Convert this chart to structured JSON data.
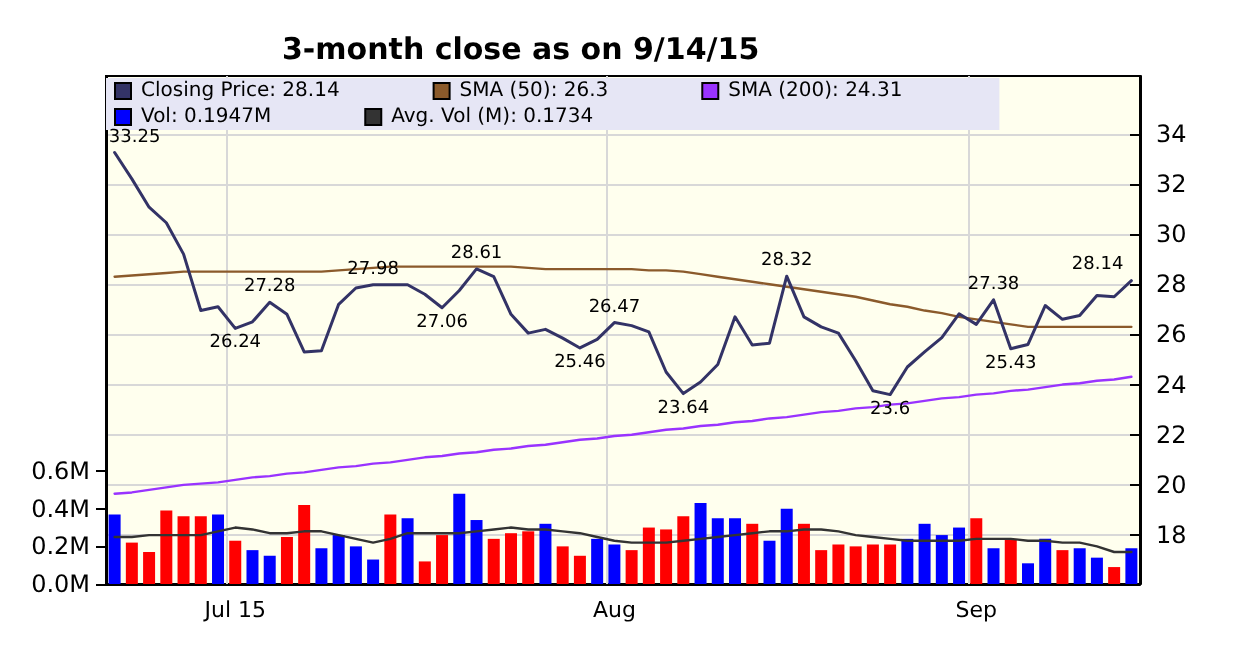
{
  "chart_data": {
    "type": "line",
    "title": "3-month close as on 9/14/15",
    "categories": [
      null,
      null,
      null,
      null,
      null,
      null,
      null,
      "Jul 15",
      null,
      null,
      null,
      null,
      null,
      null,
      null,
      null,
      null,
      null,
      null,
      null,
      null,
      null,
      null,
      null,
      null,
      null,
      null,
      null,
      null,
      "Aug",
      null,
      null,
      null,
      null,
      null,
      null,
      null,
      null,
      null,
      null,
      null,
      null,
      null,
      null,
      null,
      null,
      null,
      null,
      null,
      null,
      "Sep",
      null,
      null,
      null,
      null,
      null,
      null,
      null,
      null,
      null
    ],
    "series": [
      {
        "name": "Closing Price: 28.14",
        "color": "#333366",
        "values": [
          33.25,
          32.2,
          31.07,
          30.45,
          29.2,
          26.95,
          27.1,
          26.24,
          26.5,
          27.28,
          26.8,
          25.3,
          25.35,
          27.2,
          27.85,
          27.98,
          27.98,
          27.98,
          27.6,
          27.06,
          27.75,
          28.61,
          28.3,
          26.8,
          26.05,
          26.2,
          25.85,
          25.46,
          25.8,
          26.47,
          26.35,
          26.1,
          24.5,
          23.64,
          24.1,
          24.8,
          26.7,
          25.58,
          25.65,
          28.32,
          26.7,
          26.3,
          26.05,
          24.95,
          23.75,
          23.6,
          24.7,
          25.3,
          25.87,
          26.82,
          26.4,
          27.38,
          25.43,
          25.6,
          27.15,
          26.6,
          26.75,
          27.55,
          27.5,
          28.14
        ],
        "value_labels": [
          "33.25",
          null,
          null,
          null,
          null,
          null,
          null,
          "26.24",
          null,
          "27.28",
          null,
          null,
          null,
          null,
          null,
          "27.98",
          null,
          null,
          null,
          "27.06",
          null,
          "28.61",
          null,
          null,
          null,
          null,
          null,
          "25.46",
          null,
          "26.47",
          null,
          null,
          null,
          "23.64",
          null,
          null,
          null,
          null,
          null,
          "28.32",
          null,
          null,
          null,
          null,
          null,
          "23.6",
          null,
          null,
          null,
          null,
          null,
          "27.38",
          "25.43",
          null,
          null,
          null,
          null,
          null,
          null,
          "28.14"
        ]
      },
      {
        "name": "SMA (50): 26.3",
        "color": "#8b5a2b",
        "values": [
          28.3,
          28.35,
          28.4,
          28.45,
          28.5,
          28.5,
          28.5,
          28.5,
          28.5,
          28.5,
          28.5,
          28.5,
          28.5,
          28.55,
          28.6,
          28.65,
          28.7,
          28.7,
          28.7,
          28.7,
          28.7,
          28.7,
          28.7,
          28.7,
          28.65,
          28.6,
          28.6,
          28.6,
          28.6,
          28.6,
          28.6,
          28.55,
          28.55,
          28.5,
          28.4,
          28.3,
          28.2,
          28.1,
          28.0,
          27.9,
          27.8,
          27.7,
          27.6,
          27.5,
          27.35,
          27.2,
          27.1,
          26.95,
          26.85,
          26.7,
          26.6,
          26.5,
          26.4,
          26.3,
          26.3,
          26.3,
          26.3,
          26.3,
          26.3,
          26.3
        ]
      },
      {
        "name": "SMA (200): 24.31",
        "color": "#9933ff",
        "values": [
          19.65,
          19.7,
          19.8,
          19.9,
          20.0,
          20.05,
          20.1,
          20.2,
          20.3,
          20.35,
          20.45,
          20.5,
          20.6,
          20.7,
          20.75,
          20.85,
          20.9,
          21.0,
          21.1,
          21.15,
          21.25,
          21.3,
          21.4,
          21.45,
          21.55,
          21.6,
          21.7,
          21.8,
          21.85,
          21.95,
          22.0,
          22.1,
          22.2,
          22.25,
          22.35,
          22.4,
          22.5,
          22.55,
          22.65,
          22.7,
          22.8,
          22.9,
          22.95,
          23.05,
          23.1,
          23.2,
          23.25,
          23.35,
          23.45,
          23.5,
          23.6,
          23.65,
          23.75,
          23.8,
          23.9,
          24.0,
          24.05,
          24.15,
          24.2,
          24.31
        ]
      },
      {
        "name": "Vol: 0.1947M",
        "type": "bar",
        "axis": "y2",
        "color": "#0000ff",
        "values": [
          0.37,
          0.22,
          0.17,
          0.39,
          0.36,
          0.36,
          0.37,
          0.23,
          0.18,
          0.15,
          0.25,
          0.42,
          0.19,
          0.26,
          0.2,
          0.13,
          0.37,
          0.35,
          0.12,
          0.26,
          0.48,
          0.34,
          0.24,
          0.27,
          0.28,
          0.32,
          0.2,
          0.15,
          0.24,
          0.21,
          0.18,
          0.3,
          0.29,
          0.36,
          0.43,
          0.35,
          0.35,
          0.32,
          0.23,
          0.4,
          0.32,
          0.18,
          0.21,
          0.2,
          0.21,
          0.21,
          0.24,
          0.32,
          0.26,
          0.3,
          0.35,
          0.19,
          0.24,
          0.11,
          0.24,
          0.18,
          0.19,
          0.14,
          0.09,
          0.19
        ],
        "colors": [
          "#0000ff",
          "#ff0000",
          "#ff0000",
          "#ff0000",
          "#ff0000",
          "#ff0000",
          "#0000ff",
          "#ff0000",
          "#0000ff",
          "#0000ff",
          "#ff0000",
          "#ff0000",
          "#0000ff",
          "#0000ff",
          "#0000ff",
          "#0000ff",
          "#ff0000",
          "#0000ff",
          "#ff0000",
          "#ff0000",
          "#0000ff",
          "#0000ff",
          "#ff0000",
          "#ff0000",
          "#ff0000",
          "#0000ff",
          "#ff0000",
          "#ff0000",
          "#0000ff",
          "#0000ff",
          "#ff0000",
          "#ff0000",
          "#ff0000",
          "#ff0000",
          "#0000ff",
          "#0000ff",
          "#0000ff",
          "#ff0000",
          "#0000ff",
          "#0000ff",
          "#ff0000",
          "#ff0000",
          "#ff0000",
          "#ff0000",
          "#ff0000",
          "#ff0000",
          "#0000ff",
          "#0000ff",
          "#0000ff",
          "#0000ff",
          "#ff0000",
          "#0000ff",
          "#ff0000",
          "#0000ff",
          "#0000ff",
          "#ff0000",
          "#0000ff",
          "#0000ff",
          "#ff0000",
          "#0000ff"
        ]
      },
      {
        "name": "Avg. Vol (M): 0.1734",
        "axis": "y2",
        "color": "#333333",
        "values": [
          0.25,
          0.25,
          0.26,
          0.26,
          0.26,
          0.26,
          0.28,
          0.3,
          0.29,
          0.27,
          0.27,
          0.28,
          0.28,
          0.26,
          0.24,
          0.22,
          0.24,
          0.27,
          0.27,
          0.27,
          0.27,
          0.28,
          0.29,
          0.3,
          0.29,
          0.29,
          0.28,
          0.27,
          0.25,
          0.23,
          0.22,
          0.22,
          0.22,
          0.23,
          0.24,
          0.25,
          0.26,
          0.27,
          0.28,
          0.28,
          0.29,
          0.29,
          0.28,
          0.26,
          0.25,
          0.24,
          0.23,
          0.23,
          0.23,
          0.23,
          0.24,
          0.24,
          0.24,
          0.23,
          0.23,
          0.22,
          0.22,
          0.2,
          0.17,
          0.17
        ]
      }
    ],
    "ylim": [
      16.05,
      36.3
    ],
    "yticks": [
      18,
      20,
      22,
      24,
      26,
      28,
      30,
      32,
      34
    ],
    "y2lim": [
      0,
      2.7
    ],
    "y2ticks": [
      {
        "value": 0,
        "label": "0.0M"
      },
      {
        "value": 0.2,
        "label": "0.2M"
      },
      {
        "value": 0.4,
        "label": "0.4M"
      },
      {
        "value": 0.6,
        "label": "0.6M"
      }
    ],
    "grid": true,
    "legend": "top",
    "marker": "none",
    "line_style": "solid"
  }
}
